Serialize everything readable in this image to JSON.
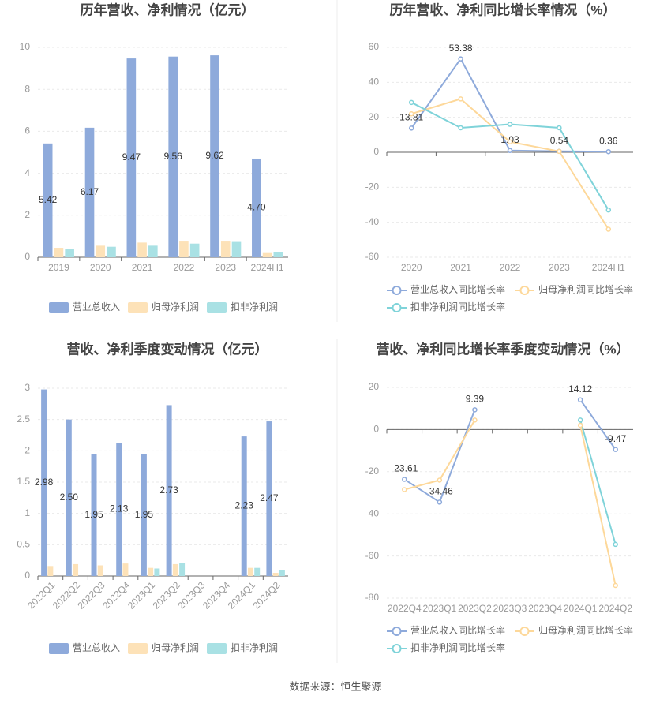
{
  "chart_data": [
    {
      "type": "bar",
      "title": "历年营收、净利情况（亿元）",
      "categories": [
        "2019",
        "2020",
        "2021",
        "2022",
        "2023",
        "2024H1"
      ],
      "series": [
        {
          "name": "营业总收入",
          "color": "#8eaadb",
          "values": [
            5.42,
            6.17,
            9.47,
            9.56,
            9.62,
            4.7
          ],
          "value_labels": [
            "5.42",
            "6.17",
            "9.47",
            "9.56",
            "9.62",
            "4.70"
          ]
        },
        {
          "name": "归母净利润",
          "color": "#fde2b8",
          "values": [
            0.45,
            0.55,
            0.7,
            0.75,
            0.75,
            0.2
          ]
        },
        {
          "name": "扣非净利润",
          "color": "#a9e1e4",
          "values": [
            0.38,
            0.5,
            0.55,
            0.65,
            0.73,
            0.25
          ]
        }
      ],
      "ylim": [
        0,
        10
      ],
      "yticks": [
        0,
        2,
        4,
        6,
        8,
        10
      ],
      "grid": true
    },
    {
      "type": "line",
      "title": "历年营收、净利同比增长率情况（%）",
      "categories": [
        "2020",
        "2021",
        "2022",
        "2023",
        "2024H1"
      ],
      "series": [
        {
          "name": "营业总收入同比增长率",
          "color": "#8eaadb",
          "values": [
            13.81,
            53.38,
            1.03,
            0.54,
            0.36
          ],
          "show_labels": true
        },
        {
          "name": "归母净利润同比增长率",
          "color": "#fdd89a",
          "values": [
            22,
            30.5,
            6,
            0.5,
            -44
          ]
        },
        {
          "name": "扣非净利润同比增长率",
          "color": "#7fd3d9",
          "values": [
            28.5,
            14,
            16,
            14,
            -33
          ]
        }
      ],
      "ylim": [
        -60,
        60
      ],
      "yticks": [
        -60,
        -40,
        -20,
        0,
        20,
        40,
        60
      ],
      "grid": true
    },
    {
      "type": "bar",
      "title": "营收、净利季度变动情况（亿元）",
      "categories": [
        "2022Q1",
        "2022Q2",
        "2022Q3",
        "2022Q4",
        "2023Q1",
        "2023Q2",
        "2023Q3",
        "2023Q4",
        "2024Q1",
        "2024Q2"
      ],
      "series": [
        {
          "name": "营业总收入",
          "color": "#8eaadb",
          "values": [
            2.98,
            2.5,
            1.95,
            2.13,
            1.95,
            2.73,
            null,
            null,
            2.23,
            2.47
          ],
          "value_labels": [
            "2.98",
            "2.50",
            "1.95",
            "2.13",
            "1.95",
            "2.73",
            null,
            null,
            "2.23",
            "2.47"
          ]
        },
        {
          "name": "归母净利润",
          "color": "#fde2b8",
          "values": [
            0.16,
            0.19,
            0.17,
            0.2,
            0.13,
            0.19,
            null,
            null,
            0.13,
            0.05
          ]
        },
        {
          "name": "扣非净利润",
          "color": "#a9e1e4",
          "values": [
            null,
            null,
            null,
            null,
            0.12,
            0.21,
            null,
            null,
            0.13,
            0.1
          ]
        }
      ],
      "ylim": [
        0,
        3
      ],
      "yticks": [
        0,
        0.5,
        1,
        1.5,
        2,
        2.5,
        3
      ],
      "grid": true,
      "rotate_labels": true
    },
    {
      "type": "line",
      "title": "营收、净利同比增长率季度变动情况（%）",
      "categories": [
        "2022Q4",
        "2023Q1",
        "2023Q2",
        "2023Q3",
        "2023Q4",
        "2024Q1",
        "2024Q2"
      ],
      "series": [
        {
          "name": "营业总收入同比增长率",
          "color": "#8eaadb",
          "values": [
            -23.61,
            -34.46,
            9.39,
            null,
            null,
            14.12,
            -9.47
          ],
          "show_labels": true
        },
        {
          "name": "归母净利润同比增长率",
          "color": "#fdd89a",
          "values": [
            -28.5,
            -24,
            4.5,
            null,
            null,
            2,
            -74
          ]
        },
        {
          "name": "扣非净利润同比增长率",
          "color": "#7fd3d9",
          "values": [
            null,
            null,
            null,
            null,
            null,
            4.5,
            -54.5
          ]
        }
      ],
      "ylim": [
        -80,
        20
      ],
      "yticks": [
        -80,
        -60,
        -40,
        -20,
        0,
        20
      ],
      "grid": true
    }
  ],
  "footer": {
    "source": "数据来源：恒生聚源"
  }
}
